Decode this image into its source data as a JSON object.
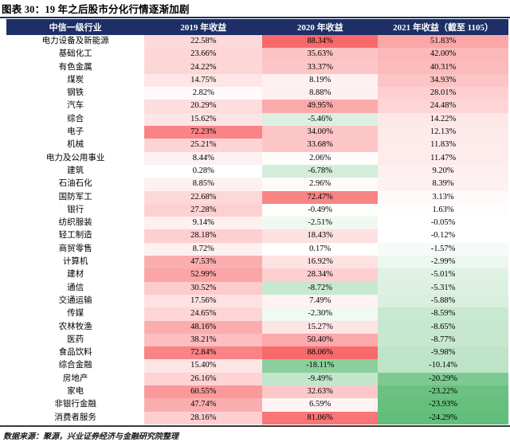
{
  "figure": {
    "title": "图表 30：19 年之后股市分化行情逐渐加剧",
    "source_note": "数据来源：聚源，兴业证券经济与金融研究院整理"
  },
  "colors": {
    "header_bg": "#1d2f66",
    "header_text": "#ffffff",
    "title_rule": "#1d2f66",
    "bottom_rule": "#3a3a3a"
  },
  "chart_data": {
    "type": "heatmap",
    "title": "图表 30：19 年之后股市分化行情逐渐加剧",
    "columns": [
      "中信一级行业",
      "2019 年收益",
      "2020 年收益",
      "2021 年收益（截至 1105）"
    ],
    "value_format": "percent_2dp",
    "color_scale": {
      "max_color": "#F8696B",
      "mid_color": "#FFFFFF",
      "min_color": "#63BE7B",
      "max_value": 88.34,
      "mid_value": 0,
      "min_value": -24.29
    },
    "rows": [
      {
        "sector": "电力设备及新能源",
        "values": [
          22.58,
          88.34,
          51.83
        ]
      },
      {
        "sector": "基础化工",
        "values": [
          23.66,
          35.63,
          42.0
        ]
      },
      {
        "sector": "有色金属",
        "values": [
          24.22,
          33.37,
          40.31
        ]
      },
      {
        "sector": "煤炭",
        "values": [
          14.75,
          8.19,
          34.93
        ]
      },
      {
        "sector": "钢铁",
        "values": [
          2.82,
          8.88,
          28.01
        ]
      },
      {
        "sector": "汽车",
        "values": [
          20.29,
          49.95,
          24.48
        ]
      },
      {
        "sector": "综合",
        "values": [
          15.62,
          -5.46,
          14.22
        ]
      },
      {
        "sector": "电子",
        "values": [
          72.23,
          34.0,
          12.13
        ]
      },
      {
        "sector": "机械",
        "values": [
          25.21,
          33.68,
          11.83
        ]
      },
      {
        "sector": "电力及公用事业",
        "values": [
          8.44,
          2.06,
          11.47
        ]
      },
      {
        "sector": "建筑",
        "values": [
          0.28,
          -6.78,
          9.2
        ]
      },
      {
        "sector": "石油石化",
        "values": [
          8.85,
          2.96,
          8.39
        ]
      },
      {
        "sector": "国防军工",
        "values": [
          22.68,
          72.47,
          3.13
        ]
      },
      {
        "sector": "银行",
        "values": [
          27.28,
          -0.49,
          1.63
        ]
      },
      {
        "sector": "纺织服装",
        "values": [
          9.14,
          -2.51,
          -0.05
        ]
      },
      {
        "sector": "轻工制造",
        "values": [
          28.18,
          18.43,
          -0.12
        ]
      },
      {
        "sector": "商贸零售",
        "values": [
          8.72,
          0.17,
          -1.57
        ]
      },
      {
        "sector": "计算机",
        "values": [
          47.53,
          16.92,
          -2.99
        ]
      },
      {
        "sector": "建材",
        "values": [
          52.99,
          28.34,
          -5.01
        ]
      },
      {
        "sector": "通信",
        "values": [
          30.52,
          -8.72,
          -5.31
        ]
      },
      {
        "sector": "交通运输",
        "values": [
          17.56,
          7.49,
          -5.88
        ]
      },
      {
        "sector": "传媒",
        "values": [
          24.65,
          -2.3,
          -8.59
        ]
      },
      {
        "sector": "农林牧渔",
        "values": [
          48.16,
          15.27,
          -8.65
        ]
      },
      {
        "sector": "医药",
        "values": [
          38.21,
          50.4,
          -8.77
        ]
      },
      {
        "sector": "食品饮料",
        "values": [
          72.84,
          88.06,
          -9.98
        ]
      },
      {
        "sector": "综合金融",
        "values": [
          15.4,
          -18.11,
          -10.14
        ]
      },
      {
        "sector": "房地产",
        "values": [
          26.16,
          -9.49,
          -20.29
        ]
      },
      {
        "sector": "家电",
        "values": [
          60.55,
          32.63,
          -23.22
        ]
      },
      {
        "sector": "非银行金融",
        "values": [
          47.74,
          6.59,
          -23.93
        ]
      },
      {
        "sector": "消费者服务",
        "values": [
          28.16,
          81.06,
          -24.29
        ]
      }
    ]
  }
}
